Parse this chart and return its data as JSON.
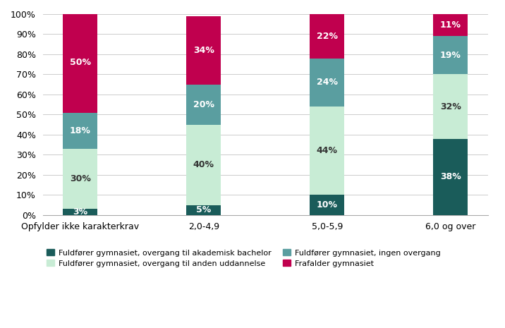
{
  "categories": [
    "Opfylder ikke karakterkrav",
    "2,0-4,9",
    "5,0-5,9",
    "6,0 og over"
  ],
  "series": {
    "akademisk_bachelor": [
      3,
      5,
      10,
      38
    ],
    "anden_uddannelse": [
      30,
      40,
      44,
      32
    ],
    "ingen_overgang": [
      18,
      20,
      24,
      19
    ],
    "frafalder": [
      50,
      34,
      22,
      11
    ]
  },
  "colors": {
    "akademisk_bachelor": "#1a5c5a",
    "anden_uddannelse": "#c8ecd5",
    "ingen_overgang": "#5a9ea0",
    "frafalder": "#c0004e"
  },
  "legend_labels": [
    "Fuldfører gymnasiet, overgang til akademisk bachelor",
    "Fuldfører gymnasiet, overgang til anden uddannelse",
    "Fuldfører gymnasiet, ingen overgang",
    "Frafalder gymnasiet"
  ],
  "legend_order": [
    "akademisk_bachelor",
    "anden_uddannelse",
    "ingen_overgang",
    "frafalder"
  ],
  "yticks": [
    0,
    10,
    20,
    30,
    40,
    50,
    60,
    70,
    80,
    90,
    100
  ],
  "ylim": [
    0,
    100
  ],
  "bar_width": 0.28,
  "background_color": "#ffffff",
  "grid_color": "#cccccc",
  "label_fontsize": 9,
  "tick_fontsize": 9,
  "legend_fontsize": 8
}
